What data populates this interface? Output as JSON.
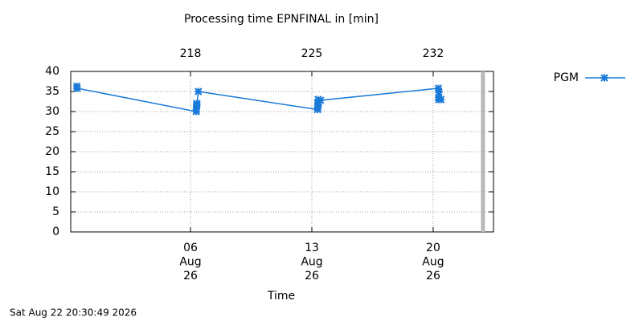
{
  "chart_data": {
    "type": "line",
    "title": "Processing time EPNFINAL in [min]",
    "x_label": "Time",
    "timestamp": "Sat Aug 22 20:30:49 2026",
    "xlim": [
      211.09,
      235.48
    ],
    "xticks": [
      {
        "value": 218,
        "label": "06 Aug 26"
      },
      {
        "value": 225,
        "label": "13 Aug 26"
      },
      {
        "value": 232,
        "label": "20 Aug 26"
      }
    ],
    "x2ticks": [
      218,
      225,
      232
    ],
    "ylim": [
      0,
      40
    ],
    "yticks": [
      0,
      5,
      10,
      15,
      20,
      25,
      30,
      35,
      40
    ],
    "grid": true,
    "now_marker_x": 234.87,
    "legend": "right",
    "series": [
      {
        "name": "PGM",
        "color": "#1a7ad8",
        "x": [
          211.44,
          211.46,
          218.33,
          218.34,
          218.35,
          218.36,
          218.37,
          218.45,
          225.33,
          225.34,
          225.35,
          225.36,
          225.37,
          225.5,
          232.3,
          232.31,
          232.32,
          232.33,
          232.45
        ],
        "values": [
          36.3,
          35.8,
          30,
          30.5,
          31.5,
          32,
          31.8,
          35,
          30.5,
          31,
          32,
          33,
          31.6,
          32.8,
          35.8,
          33.5,
          33,
          34.8,
          33
        ]
      }
    ]
  }
}
